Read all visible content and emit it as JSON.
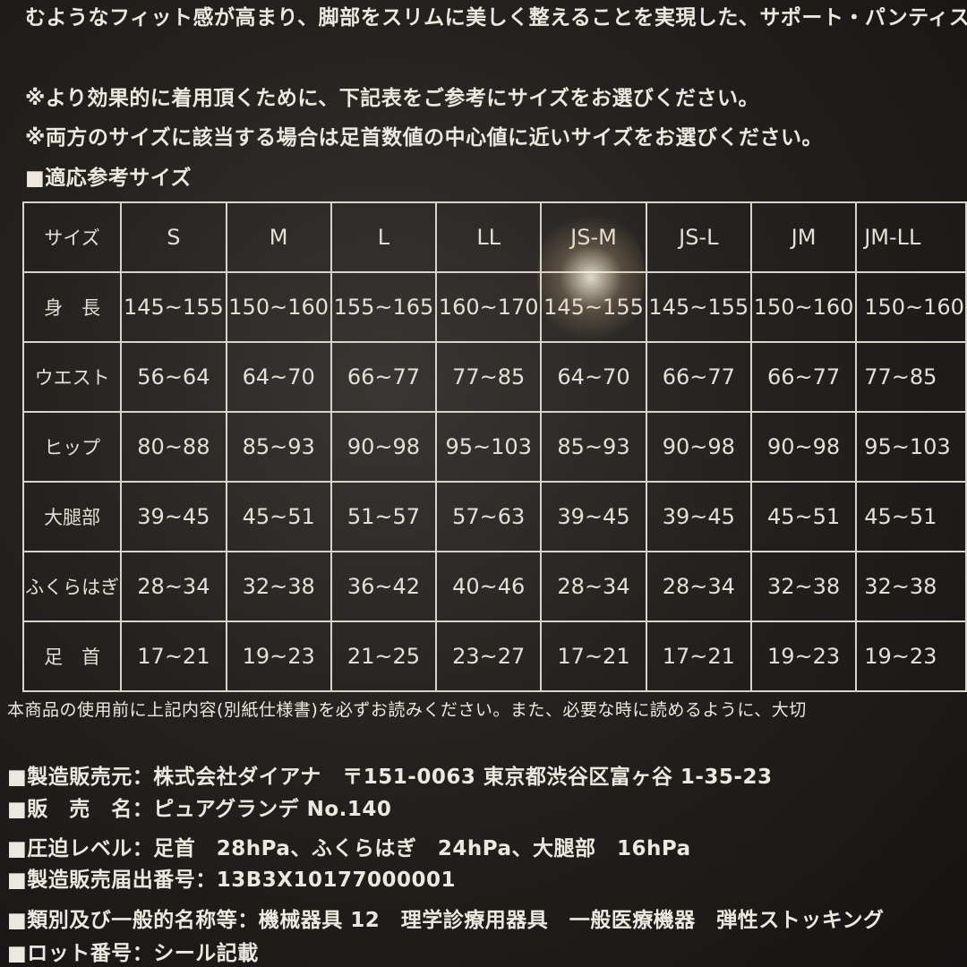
{
  "intro": "むようなフィット感が高まり、脚部をスリムに美しく整えることを実現した、サポート・パンティス",
  "notes": [
    "※より効果的に着用頂くために、下記表をご参考にサイズをお選びください。",
    "※両方のサイズに該当する場合は足首数値の中心値に近いサイズをお選びください。"
  ],
  "table_title": "■適応参考サイズ",
  "size_table": {
    "headers": [
      "サイズ",
      "S",
      "M",
      "L",
      "LL",
      "JS-M",
      "JS-L",
      "JM",
      "JM-LL"
    ],
    "rows": [
      [
        "身　長",
        "145~155",
        "150~160",
        "155~165",
        "160~170",
        "145~155",
        "145~155",
        "150~160",
        "150~160"
      ],
      [
        "ウエスト",
        "56~64",
        "64~70",
        "66~77",
        "77~85",
        "64~70",
        "66~77",
        "66~77",
        "77~85"
      ],
      [
        "ヒップ",
        "80~88",
        "85~93",
        "90~98",
        "95~103",
        "85~93",
        "90~98",
        "90~98",
        "95~103"
      ],
      [
        "大腿部",
        "39~45",
        "45~51",
        "51~57",
        "57~63",
        "39~45",
        "39~45",
        "45~51",
        "45~51"
      ],
      [
        "ふくらはぎ",
        "28~34",
        "32~38",
        "36~42",
        "40~46",
        "28~34",
        "28~34",
        "32~38",
        "32~38"
      ],
      [
        "足　首",
        "17~21",
        "19~23",
        "21~25",
        "23~27",
        "17~21",
        "17~21",
        "19~23",
        "19~23"
      ]
    ]
  },
  "footnote": "本商品の使用前に上記内容(別紙仕様書)を必ずお読みください。また、必要な時に読めるように、大切",
  "info": [
    "■製造販売元：株式会社ダイアナ　〒151-0063 東京都渋谷区富ヶ谷 1-35-23",
    "■販　売　名：ピュアグランデ No.140",
    "■圧迫レベル：足首　28hPa、ふくらはぎ　24hPa、大腿部　16hPa",
    "■製造販売届出番号：13B3X10177000001",
    "■類別及び一般的名称等：機械器具 12　理学診療用器具　一般医療機器　弾性ストッキング",
    "■ロット番号：シール記載"
  ]
}
